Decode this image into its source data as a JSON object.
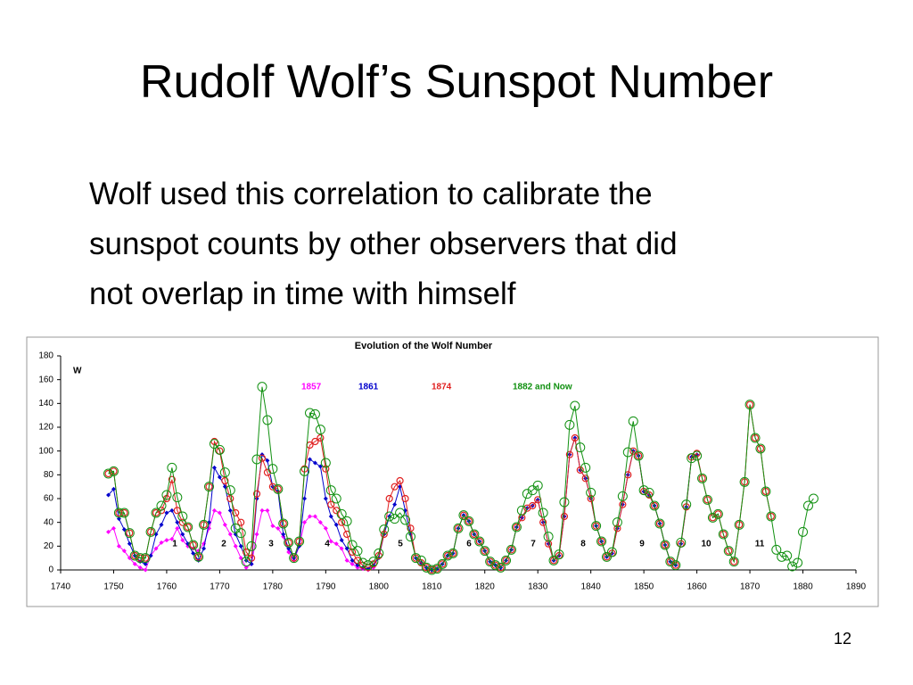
{
  "title": "Rudolf Wolf’s Sunspot Number",
  "body": [
    "Wolf used this correlation to calibrate the",
    "sunspot counts by other observers that did",
    "not overlap in time with himself"
  ],
  "page_number": "12",
  "chart_data": {
    "type": "line",
    "title": "Evolution of the Wolf Number",
    "ylabel": "W",
    "x": [
      1749,
      1750,
      1751,
      1752,
      1753,
      1754,
      1755,
      1756,
      1757,
      1758,
      1759,
      1760,
      1761,
      1762,
      1763,
      1764,
      1765,
      1766,
      1767,
      1768,
      1769,
      1770,
      1771,
      1772,
      1773,
      1774,
      1775,
      1776,
      1777,
      1778,
      1779,
      1780,
      1781,
      1782,
      1783,
      1784,
      1785,
      1786,
      1787,
      1788,
      1789,
      1790,
      1791,
      1792,
      1793,
      1794,
      1795,
      1796,
      1797,
      1798,
      1799,
      1800,
      1801,
      1802,
      1803,
      1804,
      1805,
      1806,
      1807,
      1808,
      1809,
      1810,
      1811,
      1812,
      1813,
      1814,
      1815,
      1816,
      1817,
      1818,
      1819,
      1820,
      1821,
      1822,
      1823,
      1824,
      1825,
      1826,
      1827,
      1828,
      1829,
      1830,
      1831,
      1832,
      1833,
      1834,
      1835,
      1836,
      1837,
      1838,
      1839,
      1840,
      1841,
      1842,
      1843,
      1844,
      1845,
      1846,
      1847,
      1848,
      1849,
      1850,
      1851,
      1852,
      1853,
      1854,
      1855,
      1856,
      1857,
      1858,
      1859,
      1860,
      1861,
      1862,
      1863,
      1864,
      1865,
      1866,
      1867,
      1868,
      1869,
      1870,
      1871,
      1872,
      1873,
      1874,
      1875,
      1876,
      1877,
      1878,
      1879,
      1880,
      1881,
      1882
    ],
    "series": [
      {
        "name": "1857",
        "color": "#ff00ff",
        "marker": "diamond",
        "values": [
          32,
          35,
          20,
          16,
          10,
          5,
          2,
          0,
          12,
          18,
          23,
          25,
          26,
          35,
          25,
          20,
          18,
          16,
          22,
          35,
          50,
          48,
          38,
          30,
          20,
          10,
          2,
          5,
          30,
          50,
          50,
          37,
          35,
          28,
          15,
          8,
          20,
          40,
          45,
          45,
          40,
          35,
          24,
          22,
          18,
          8,
          5,
          2,
          1,
          0,
          2,
          null,
          null,
          null,
          null,
          null,
          null,
          null,
          null,
          null,
          null,
          null,
          null,
          null,
          null,
          null,
          null,
          null,
          null,
          null,
          null,
          null,
          null,
          null,
          null,
          null,
          null,
          null,
          null,
          null,
          null,
          null,
          null,
          null,
          null,
          null,
          null,
          null,
          null,
          null,
          null,
          null,
          null,
          null,
          null,
          null,
          null,
          null,
          null,
          null,
          null,
          null,
          null,
          null,
          null,
          null,
          null,
          null,
          null,
          null,
          null,
          null,
          null,
          null,
          null,
          null,
          null,
          null,
          null,
          null,
          null,
          null,
          null,
          null,
          null,
          null,
          null,
          null,
          null,
          null,
          null,
          null,
          null,
          null
        ]
      },
      {
        "name": "1861",
        "color": "#0000cc",
        "marker": "diamond",
        "values": [
          63,
          68,
          43,
          34,
          22,
          12,
          7,
          5,
          12,
          30,
          38,
          48,
          50,
          40,
          30,
          22,
          14,
          8,
          18,
          40,
          86,
          78,
          70,
          50,
          30,
          20,
          8,
          5,
          60,
          97,
          92,
          70,
          66,
          30,
          18,
          10,
          20,
          60,
          93,
          90,
          87,
          60,
          45,
          38,
          25,
          18,
          8,
          4,
          2,
          1,
          4,
          10,
          30,
          45,
          55,
          70,
          50,
          30,
          10,
          6,
          2,
          0,
          1,
          5,
          12,
          14,
          35,
          46,
          41,
          30,
          24,
          16,
          7,
          4,
          2,
          8,
          17,
          36,
          44,
          52,
          54,
          59,
          40,
          22,
          8,
          12,
          45,
          97,
          111,
          84,
          77,
          60,
          37,
          24,
          11,
          14,
          35,
          55,
          80,
          100,
          96,
          66,
          63,
          54,
          39,
          21,
          7,
          4,
          22,
          53,
          95,
          97,
          null,
          null,
          null,
          null,
          null,
          null,
          null,
          null,
          null,
          null,
          null,
          null,
          null,
          null,
          null,
          null,
          null,
          null,
          null,
          null,
          null,
          null
        ]
      },
      {
        "name": "1874",
        "color": "#e02020",
        "marker": "circle",
        "values": [
          81,
          83,
          48,
          48,
          31,
          12,
          10,
          10,
          32,
          48,
          50,
          60,
          76,
          50,
          40,
          36,
          21,
          11,
          38,
          70,
          108,
          100,
          75,
          60,
          48,
          40,
          15,
          10,
          64,
          94,
          82,
          70,
          68,
          39,
          23,
          10,
          24,
          85,
          105,
          108,
          111,
          85,
          55,
          50,
          40,
          30,
          15,
          8,
          4,
          2,
          5,
          12,
          30,
          60,
          70,
          75,
          60,
          35,
          10,
          6,
          2,
          0,
          1,
          5,
          12,
          14,
          35,
          46,
          41,
          30,
          24,
          16,
          7,
          4,
          2,
          8,
          17,
          36,
          44,
          52,
          54,
          59,
          40,
          22,
          8,
          12,
          45,
          97,
          111,
          84,
          77,
          60,
          37,
          24,
          11,
          14,
          35,
          55,
          80,
          100,
          96,
          66,
          63,
          54,
          39,
          21,
          7,
          4,
          22,
          53,
          95,
          98,
          77,
          59,
          44,
          47,
          30,
          16,
          7,
          38,
          74,
          139,
          111,
          102,
          66,
          45,
          null,
          null,
          null,
          null,
          null,
          null,
          null,
          null
        ]
      },
      {
        "name": "1882 and Now",
        "color": "#109010",
        "marker": "ring",
        "values": [
          81,
          83,
          48,
          48,
          31,
          12,
          10,
          10,
          32,
          48,
          54,
          63,
          86,
          61,
          45,
          36,
          21,
          11,
          38,
          70,
          106,
          101,
          82,
          67,
          35,
          31,
          7,
          20,
          93,
          154,
          126,
          85,
          68,
          39,
          23,
          10,
          24,
          83,
          132,
          131,
          118,
          90,
          67,
          60,
          47,
          41,
          21,
          16,
          6,
          4,
          7,
          14,
          34,
          45,
          43,
          48,
          42,
          28,
          10,
          8,
          2,
          0,
          1,
          5,
          12,
          14,
          35,
          46,
          41,
          30,
          24,
          16,
          7,
          4,
          2,
          8,
          17,
          36,
          50,
          64,
          67,
          71,
          48,
          28,
          8,
          13,
          57,
          122,
          138,
          103,
          86,
          65,
          37,
          24,
          11,
          15,
          40,
          62,
          99,
          125,
          96,
          67,
          65,
          54,
          39,
          21,
          7,
          4,
          23,
          55,
          94,
          96,
          77,
          59,
          44,
          47,
          30,
          16,
          7,
          38,
          74,
          139,
          111,
          102,
          66,
          45,
          17,
          11,
          12,
          3,
          6,
          32,
          54,
          60
        ]
      }
    ],
    "annotations": [
      "1",
      "2",
      "3",
      "4",
      "5",
      "6",
      "7",
      "8",
      "9",
      "10",
      "11"
    ],
    "xlim": [
      1740,
      1890
    ],
    "xticks": [
      1740,
      1750,
      1760,
      1770,
      1780,
      1790,
      1800,
      1810,
      1820,
      1830,
      1840,
      1850,
      1860,
      1870,
      1880,
      1890
    ],
    "ylim": [
      0,
      180
    ],
    "yticks": [
      0,
      20,
      40,
      60,
      80,
      100,
      120,
      140,
      160,
      180
    ],
    "grid": false
  }
}
